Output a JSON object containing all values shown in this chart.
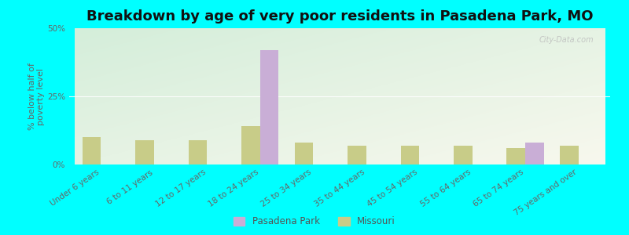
{
  "title": "Breakdown by age of very poor residents in Pasadena Park, MO",
  "ylabel": "% below half of\npoverty level",
  "categories": [
    "Under 6 years",
    "6 to 11 years",
    "12 to 17 years",
    "18 to 24 years",
    "25 to 34 years",
    "35 to 44 years",
    "45 to 54 years",
    "55 to 64 years",
    "65 to 74 years",
    "75 years and over"
  ],
  "pasadena_values": [
    0,
    0,
    0,
    42.0,
    0,
    0,
    0,
    0,
    8.0,
    0
  ],
  "missouri_values": [
    10.0,
    9.0,
    9.0,
    14.0,
    8.0,
    7.0,
    7.0,
    7.0,
    6.0,
    7.0
  ],
  "pasadena_color": "#c9aed6",
  "missouri_color": "#c8cc88",
  "background_color": "#00ffff",
  "ylim": [
    0,
    50
  ],
  "yticks": [
    0,
    25,
    50
  ],
  "ytick_labels": [
    "0%",
    "25%",
    "50%"
  ],
  "bar_width": 0.35,
  "title_fontsize": 13,
  "axis_label_fontsize": 8,
  "tick_fontsize": 7.5,
  "legend_labels": [
    "Pasadena Park",
    "Missouri"
  ],
  "watermark": "City-Data.com"
}
